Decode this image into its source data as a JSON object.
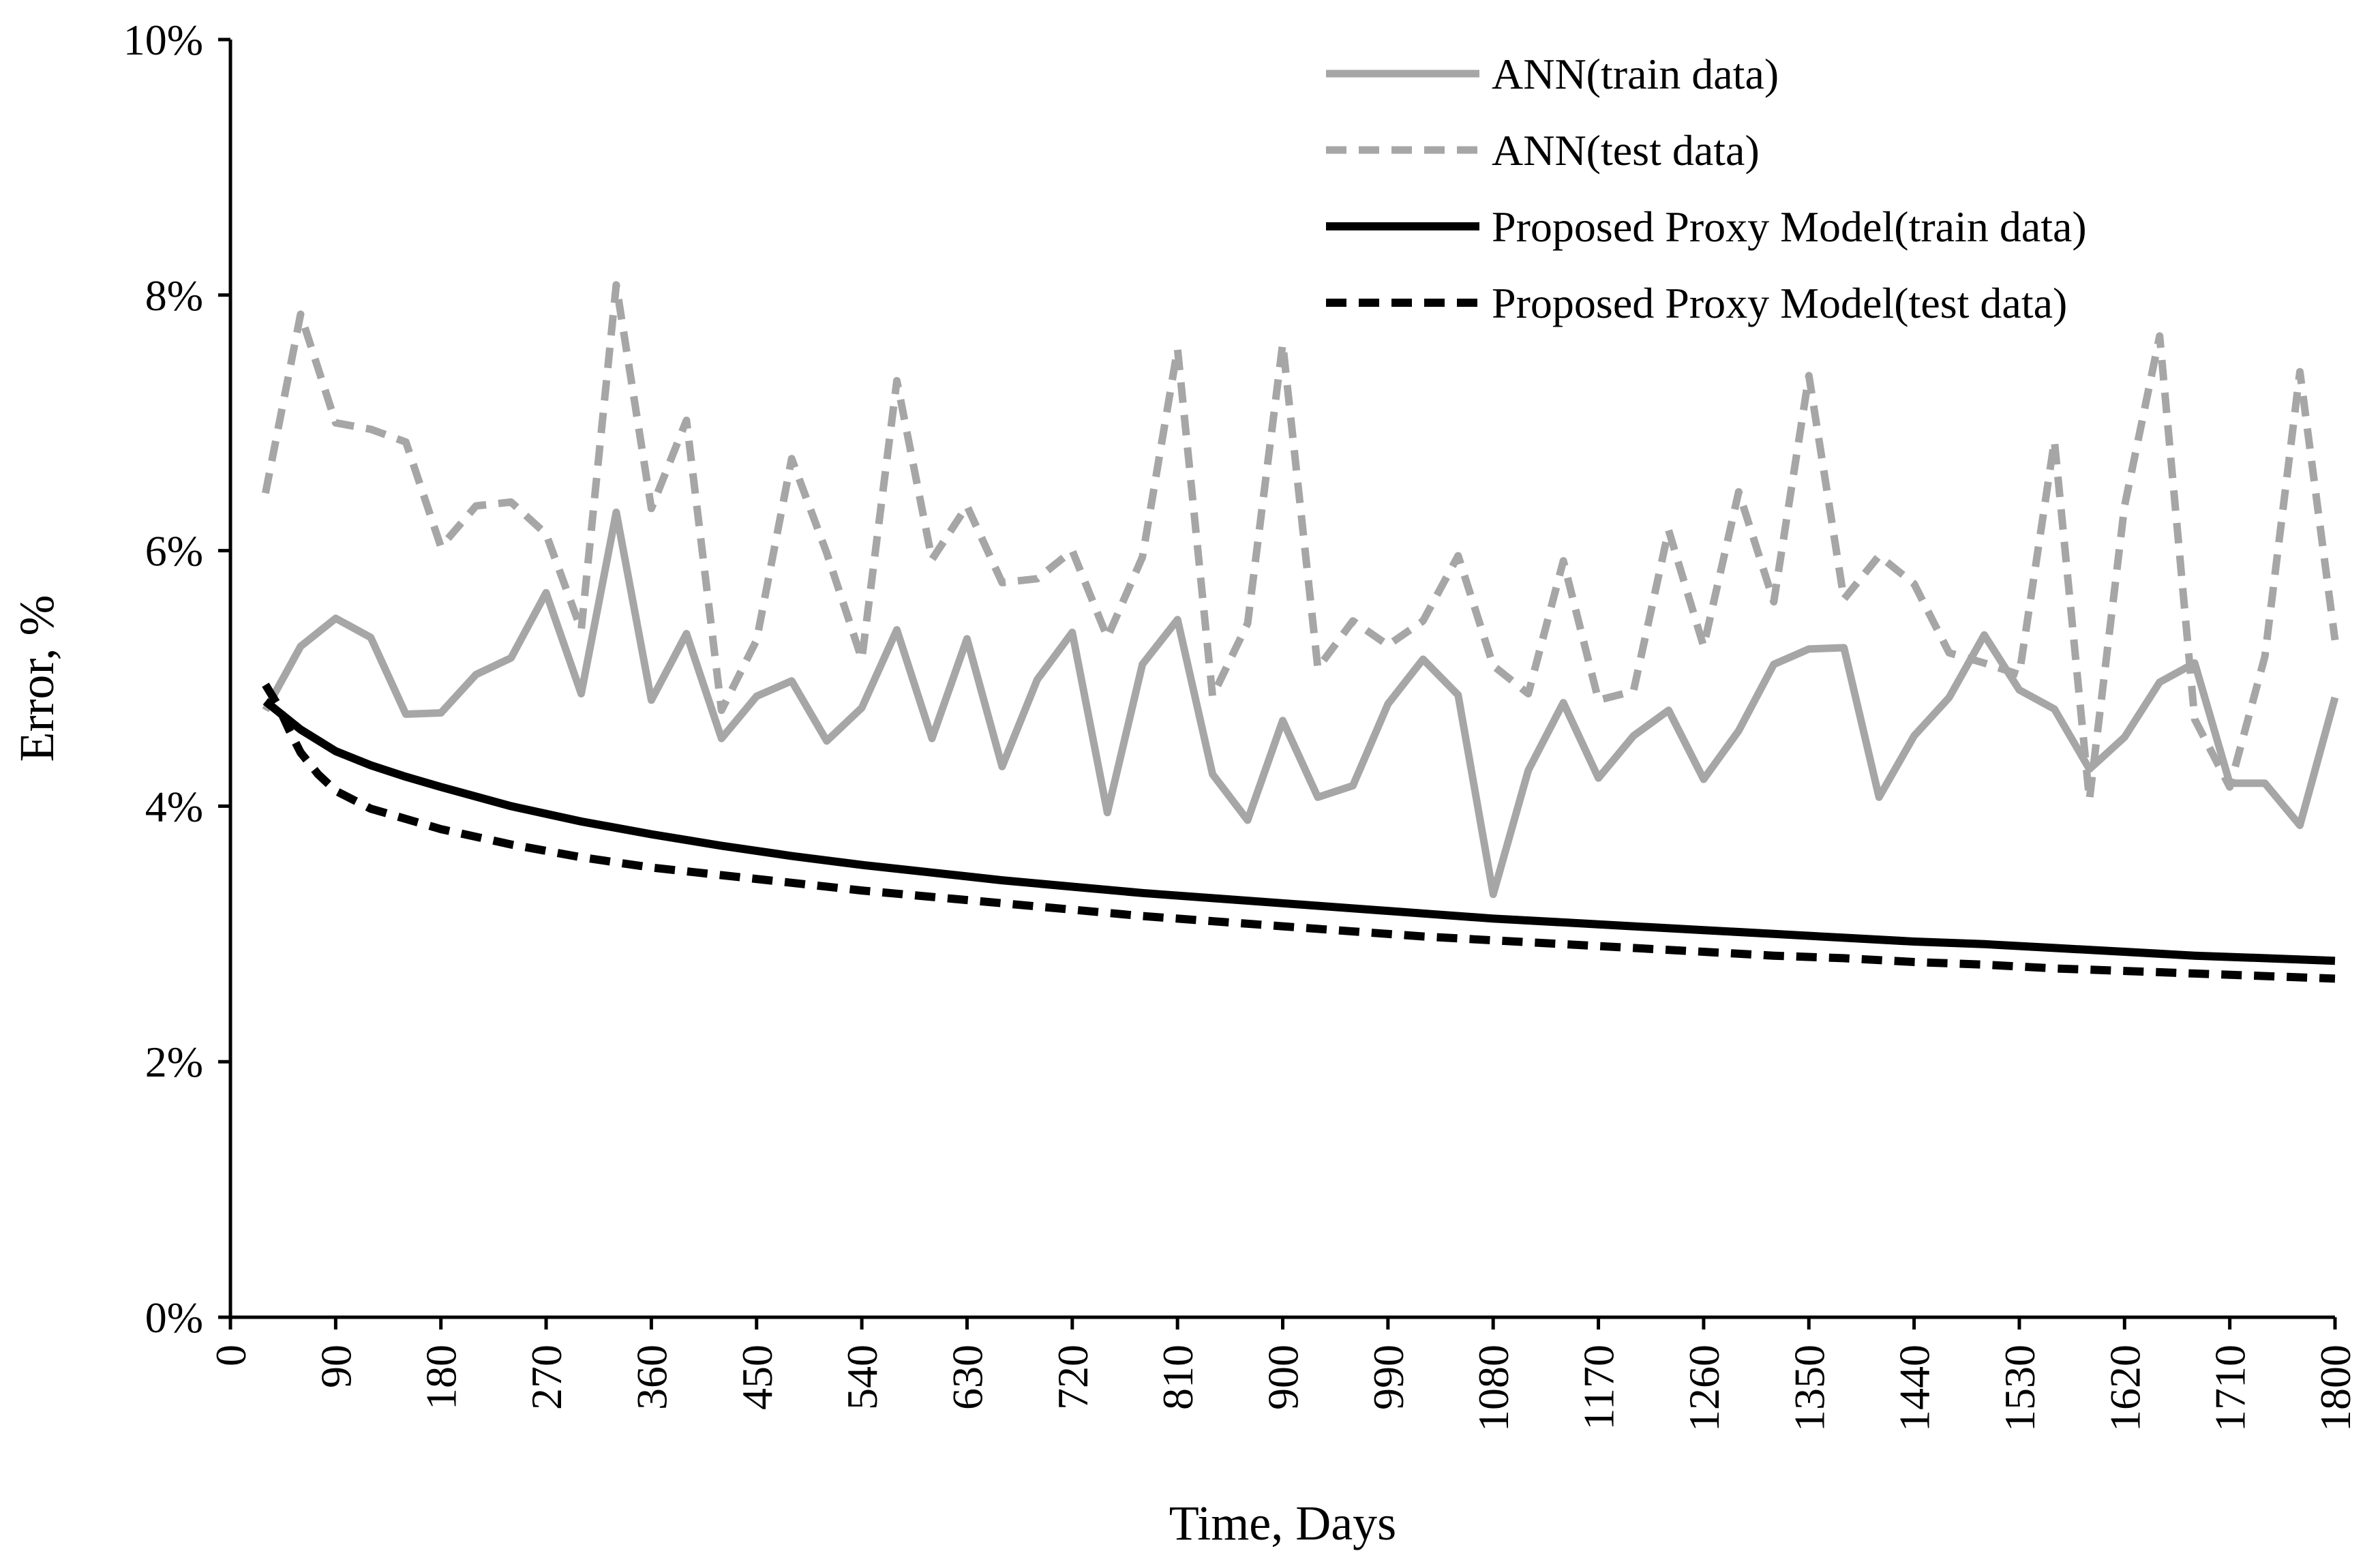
{
  "chart_data": {
    "type": "line",
    "title": "",
    "xlabel": "Time, Days",
    "ylabel": "Error, %",
    "xlim": [
      0,
      1800
    ],
    "ylim": [
      0,
      10
    ],
    "x_ticks": [
      0,
      90,
      180,
      270,
      360,
      450,
      540,
      630,
      720,
      810,
      900,
      990,
      1080,
      1170,
      1260,
      1350,
      1440,
      1530,
      1620,
      1710,
      1800
    ],
    "y_ticks": [
      0,
      2,
      4,
      6,
      8,
      10
    ],
    "y_tick_labels": [
      "0%",
      "2%",
      "4%",
      "6%",
      "8%",
      "10%"
    ],
    "grid": false,
    "legend_position": "top-right",
    "series": [
      {
        "name": "ANN(train data)",
        "color": "#a6a6a6",
        "style": "solid",
        "x": [
          30,
          60,
          90,
          120,
          150,
          180,
          210,
          240,
          270,
          300,
          330,
          360,
          390,
          420,
          450,
          480,
          510,
          540,
          570,
          600,
          630,
          660,
          690,
          720,
          750,
          780,
          810,
          840,
          870,
          900,
          930,
          960,
          990,
          1020,
          1050,
          1080,
          1110,
          1140,
          1170,
          1200,
          1230,
          1260,
          1290,
          1320,
          1350,
          1380,
          1410,
          1440,
          1470,
          1500,
          1530,
          1560,
          1590,
          1620,
          1650,
          1680,
          1710,
          1740,
          1770,
          1800
        ],
        "values": [
          4.75,
          5.25,
          5.47,
          5.32,
          4.72,
          4.73,
          5.03,
          5.16,
          5.67,
          4.88,
          6.3,
          4.83,
          5.35,
          4.53,
          4.86,
          4.98,
          4.51,
          4.77,
          5.38,
          4.53,
          5.31,
          4.31,
          4.99,
          5.36,
          3.95,
          5.11,
          5.46,
          4.25,
          3.89,
          4.67,
          4.07,
          4.16,
          4.8,
          5.15,
          4.87,
          3.31,
          4.28,
          4.81,
          4.22,
          4.55,
          4.75,
          4.21,
          4.59,
          5.11,
          5.23,
          5.24,
          4.07,
          4.55,
          4.85,
          5.34,
          4.91,
          4.76,
          4.29,
          4.54,
          4.97,
          5.12,
          4.18,
          4.18,
          3.85,
          4.85
        ]
      },
      {
        "name": "ANN(test data)",
        "color": "#a6a6a6",
        "style": "dashed",
        "x": [
          30,
          60,
          90,
          120,
          150,
          180,
          210,
          240,
          270,
          300,
          330,
          360,
          390,
          420,
          450,
          480,
          510,
          540,
          570,
          600,
          630,
          660,
          690,
          720,
          750,
          780,
          810,
          840,
          870,
          900,
          930,
          960,
          990,
          1020,
          1050,
          1080,
          1110,
          1140,
          1170,
          1200,
          1230,
          1260,
          1290,
          1320,
          1350,
          1380,
          1410,
          1440,
          1470,
          1500,
          1530,
          1560,
          1590,
          1620,
          1650,
          1680,
          1710,
          1740,
          1770,
          1800
        ],
        "values": [
          6.45,
          7.85,
          7.0,
          6.95,
          6.85,
          6.03,
          6.35,
          6.38,
          6.13,
          5.38,
          8.08,
          6.33,
          7.02,
          4.75,
          5.3,
          6.72,
          5.98,
          5.15,
          7.33,
          5.93,
          6.35,
          5.75,
          5.78,
          6.0,
          5.32,
          5.95,
          7.58,
          4.86,
          5.43,
          7.62,
          5.08,
          5.45,
          5.26,
          5.45,
          5.96,
          5.1,
          4.88,
          5.92,
          4.83,
          4.9,
          6.16,
          5.25,
          6.46,
          5.6,
          7.37,
          5.62,
          5.96,
          5.74,
          5.2,
          5.12,
          5.03,
          6.86,
          4.05,
          6.35,
          7.68,
          4.68,
          4.15,
          5.17,
          7.4,
          5.3
        ]
      },
      {
        "name": "Proposed Proxy Model(train data)",
        "color": "#000000",
        "style": "solid",
        "x": [
          30,
          60,
          90,
          120,
          150,
          180,
          240,
          300,
          360,
          420,
          480,
          540,
          600,
          660,
          720,
          780,
          840,
          900,
          960,
          1020,
          1080,
          1140,
          1200,
          1260,
          1320,
          1380,
          1440,
          1500,
          1560,
          1620,
          1680,
          1740,
          1800
        ],
        "values": [
          4.82,
          4.6,
          4.43,
          4.32,
          4.23,
          4.15,
          4.0,
          3.88,
          3.78,
          3.69,
          3.61,
          3.54,
          3.48,
          3.42,
          3.37,
          3.32,
          3.28,
          3.24,
          3.2,
          3.16,
          3.12,
          3.09,
          3.06,
          3.03,
          3.0,
          2.97,
          2.94,
          2.92,
          2.89,
          2.86,
          2.83,
          2.81,
          2.79
        ]
      },
      {
        "name": "Proposed Proxy Model(test data)",
        "color": "#000000",
        "style": "dashed",
        "x": [
          30,
          40,
          50,
          60,
          75,
          90,
          120,
          150,
          180,
          240,
          300,
          360,
          420,
          480,
          540,
          600,
          660,
          720,
          780,
          840,
          900,
          960,
          1020,
          1080,
          1140,
          1200,
          1260,
          1320,
          1380,
          1440,
          1500,
          1560,
          1620,
          1680,
          1740,
          1800
        ],
        "values": [
          4.95,
          4.8,
          4.6,
          4.42,
          4.25,
          4.12,
          3.98,
          3.9,
          3.82,
          3.7,
          3.6,
          3.52,
          3.46,
          3.4,
          3.34,
          3.29,
          3.24,
          3.19,
          3.14,
          3.1,
          3.06,
          3.02,
          2.98,
          2.95,
          2.92,
          2.89,
          2.86,
          2.83,
          2.81,
          2.78,
          2.76,
          2.73,
          2.71,
          2.69,
          2.67,
          2.65
        ]
      }
    ]
  }
}
